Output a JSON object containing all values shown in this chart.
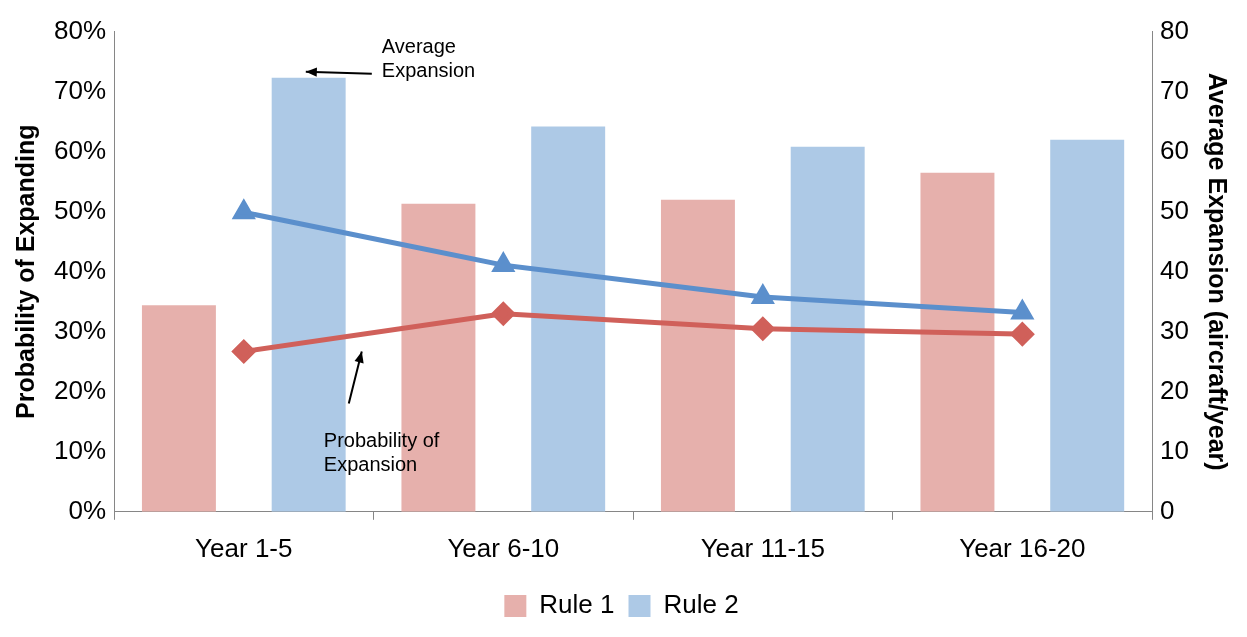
{
  "chart_data": {
    "type": "bar",
    "categories": [
      "Year 1-5",
      "Year 6-10",
      "Year 11-15",
      "Year 16-20"
    ],
    "series": [
      {
        "name": "Rule 1",
        "axis": "y2",
        "color": "#e6b0ac",
        "values": [
          34.4,
          51.3,
          52,
          56.5
        ]
      },
      {
        "name": "Rule 2",
        "axis": "y2",
        "color": "#adc9e6",
        "values": [
          72.3,
          64.2,
          60.8,
          62
        ]
      },
      {
        "type": "line",
        "color": "#d0605a",
        "marker": "diamond",
        "values": [
          26.7,
          33,
          30.5,
          29.6
        ]
      },
      {
        "type": "line",
        "color": "#5b8fcc",
        "marker": "triangle",
        "values": [
          49.9,
          41.1,
          35.8,
          33.2
        ]
      }
    ],
    "ylabel": "Probability of Expanding",
    "y2label": "Average Expansion (aircraft/year)",
    "ylim": [
      0,
      80
    ],
    "yticks": [
      {
        "value": 0,
        "label": "0%"
      },
      {
        "value": 10,
        "label": "10%"
      },
      {
        "value": 20,
        "label": "20%"
      },
      {
        "value": 30,
        "label": "30%"
      },
      {
        "value": 40,
        "label": "40%"
      },
      {
        "value": 50,
        "label": "50%"
      },
      {
        "value": 60,
        "label": "60%"
      },
      {
        "value": 70,
        "label": "70%"
      },
      {
        "value": 80,
        "label": "80%"
      }
    ],
    "y2lim": [
      0,
      80
    ],
    "y2ticks": [
      0,
      10,
      20,
      30,
      40,
      50,
      60,
      70,
      80
    ],
    "annotations": [
      "Average Expansion",
      "Probability of Expansion"
    ],
    "grid": false,
    "legend": "bottom"
  }
}
